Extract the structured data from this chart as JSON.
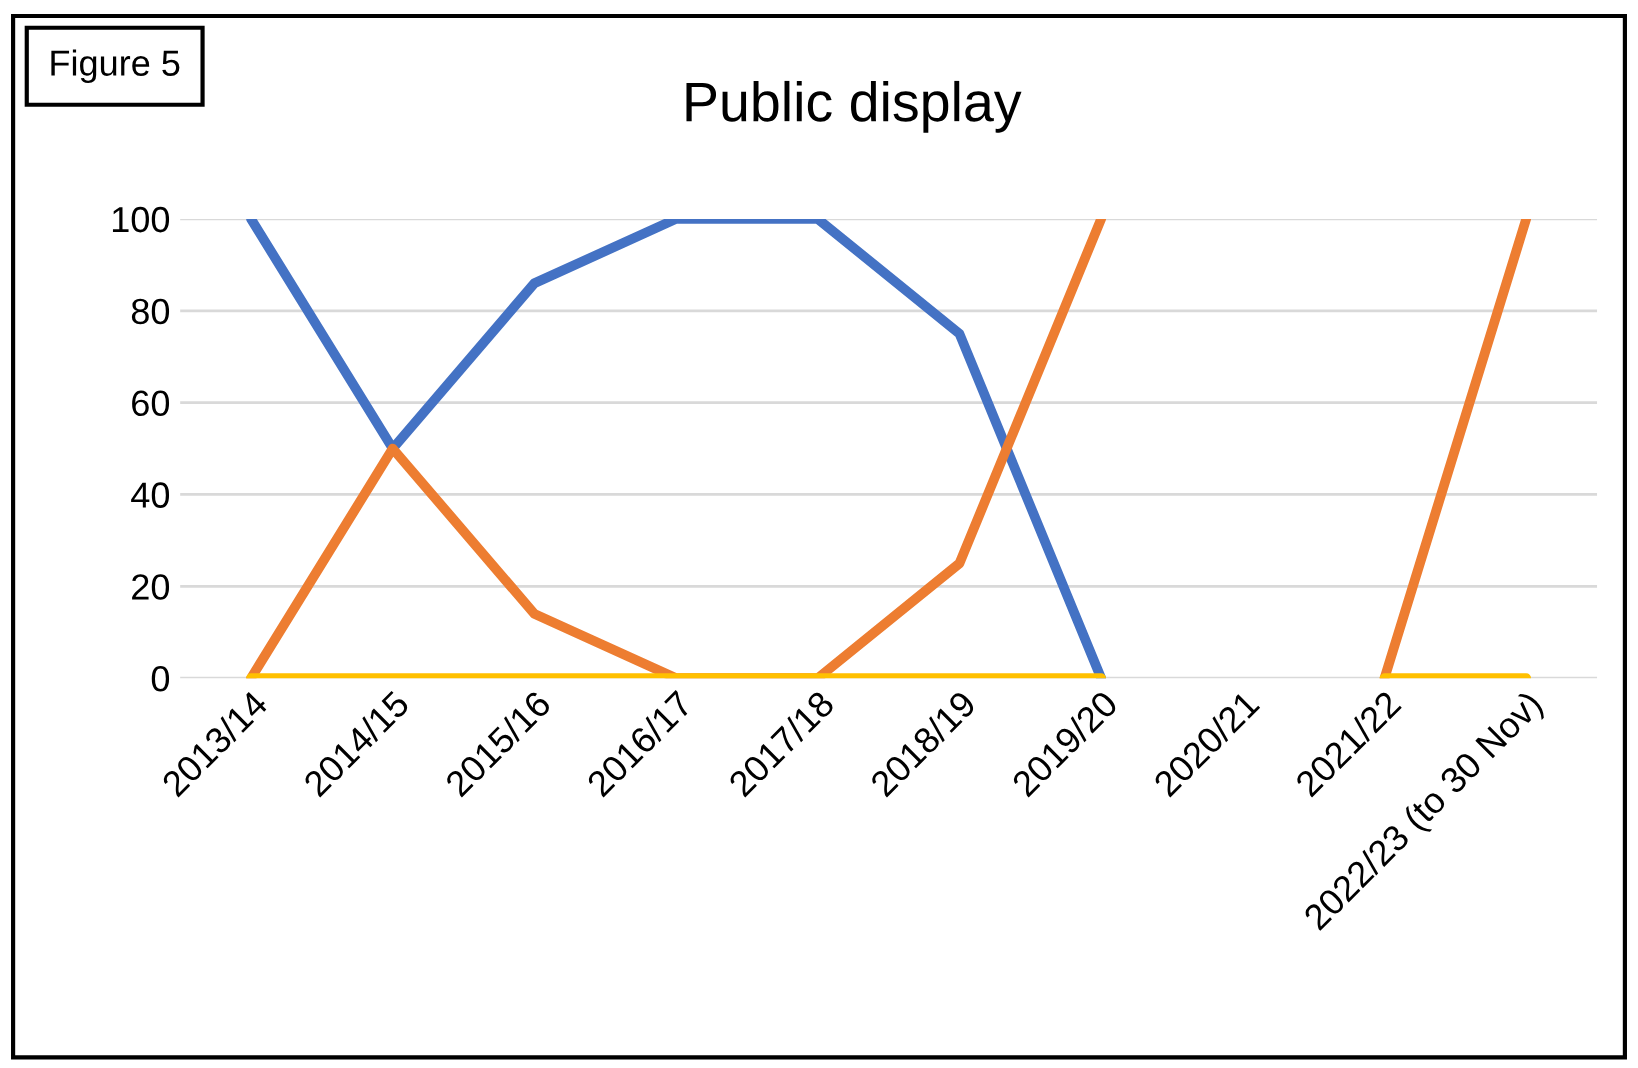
{
  "chart_data": {
    "type": "line",
    "title": "Public display",
    "annotations": [
      "Figure 5"
    ],
    "categories": [
      "2013/14",
      "2014/15",
      "2015/16",
      "2016/17",
      "2017/18",
      "2018/19",
      "2019/20",
      "2020/21",
      "2021/22",
      "2022/23 (to 30 Nov)"
    ],
    "series": [
      {
        "color": "#4472c4",
        "values": [
          100,
          50,
          86,
          100,
          100,
          75,
          0,
          null,
          null,
          null
        ]
      },
      {
        "color": "#ed7d31",
        "values": [
          0,
          50,
          14,
          0,
          0,
          25,
          100,
          null,
          0,
          100
        ]
      },
      {
        "color": "#ffc000",
        "values": [
          0,
          0,
          0,
          0,
          0,
          0,
          0,
          null,
          0,
          0
        ]
      }
    ],
    "ylim": [
      0,
      100
    ],
    "yticks": [
      0,
      20,
      40,
      60,
      80,
      100
    ],
    "grid": "y",
    "legend": false,
    "marker": "none",
    "line_style": "solid"
  }
}
